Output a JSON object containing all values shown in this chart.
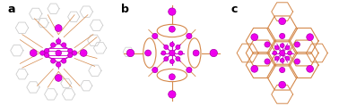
{
  "panels": [
    "a",
    "b",
    "c"
  ],
  "panel_labels": [
    "a",
    "b",
    "c"
  ],
  "background_color": "#ffffff",
  "label_fontsize": 9,
  "label_fontweight": "bold",
  "figsize": [
    3.78,
    1.19
  ],
  "dpi": 100,
  "silver_color": "#ee00ee",
  "silver_edge_color": "#aa00aa",
  "ligand_color_gray": "#cccccc",
  "bond_color_magenta": "#cc00cc",
  "bond_color_orange": "#d4884a"
}
